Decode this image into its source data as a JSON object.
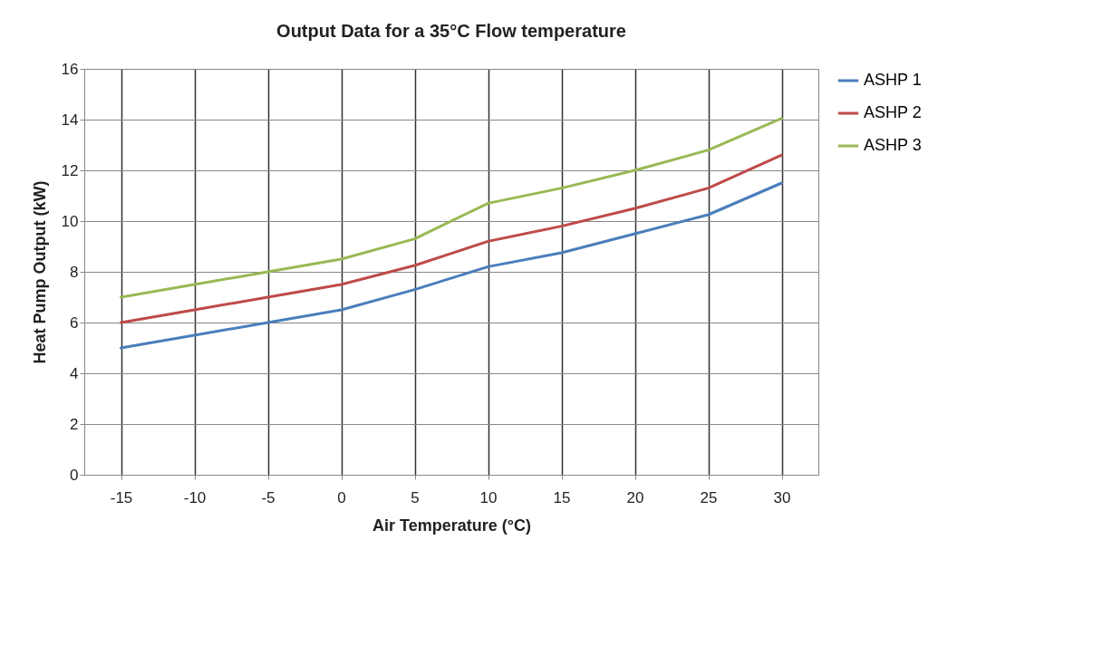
{
  "chart_data": {
    "type": "line",
    "title": "Output Data for a 35°C Flow temperature",
    "xlabel": "Air Temperature (°C)",
    "ylabel": "Heat Pump Output  (kW)",
    "categories": [
      "-15",
      "-10",
      "-5",
      "0",
      "5",
      "10",
      "15",
      "20",
      "25",
      "30"
    ],
    "series": [
      {
        "name": "ASHP 1",
        "color": "#4a7ebb",
        "values": [
          5,
          5.5,
          6,
          6.5,
          7.3,
          8.2,
          8.75,
          9.5,
          10.25,
          11.5
        ]
      },
      {
        "name": "ASHP 2",
        "color": "#be4b48",
        "values": [
          6,
          6.5,
          7,
          7.5,
          8.25,
          9.2,
          9.8,
          10.5,
          11.3,
          12.6
        ]
      },
      {
        "name": "ASHP 3",
        "color": "#98b954",
        "values": [
          7,
          7.5,
          8,
          8.5,
          9.3,
          10.7,
          11.3,
          12,
          12.8,
          14.05
        ]
      }
    ],
    "ylim": [
      0,
      16
    ],
    "yticks": [
      0,
      2,
      4,
      6,
      8,
      10,
      12,
      14,
      16
    ],
    "grid": true,
    "legend": "right",
    "marker": "none",
    "line_style": "solid"
  }
}
